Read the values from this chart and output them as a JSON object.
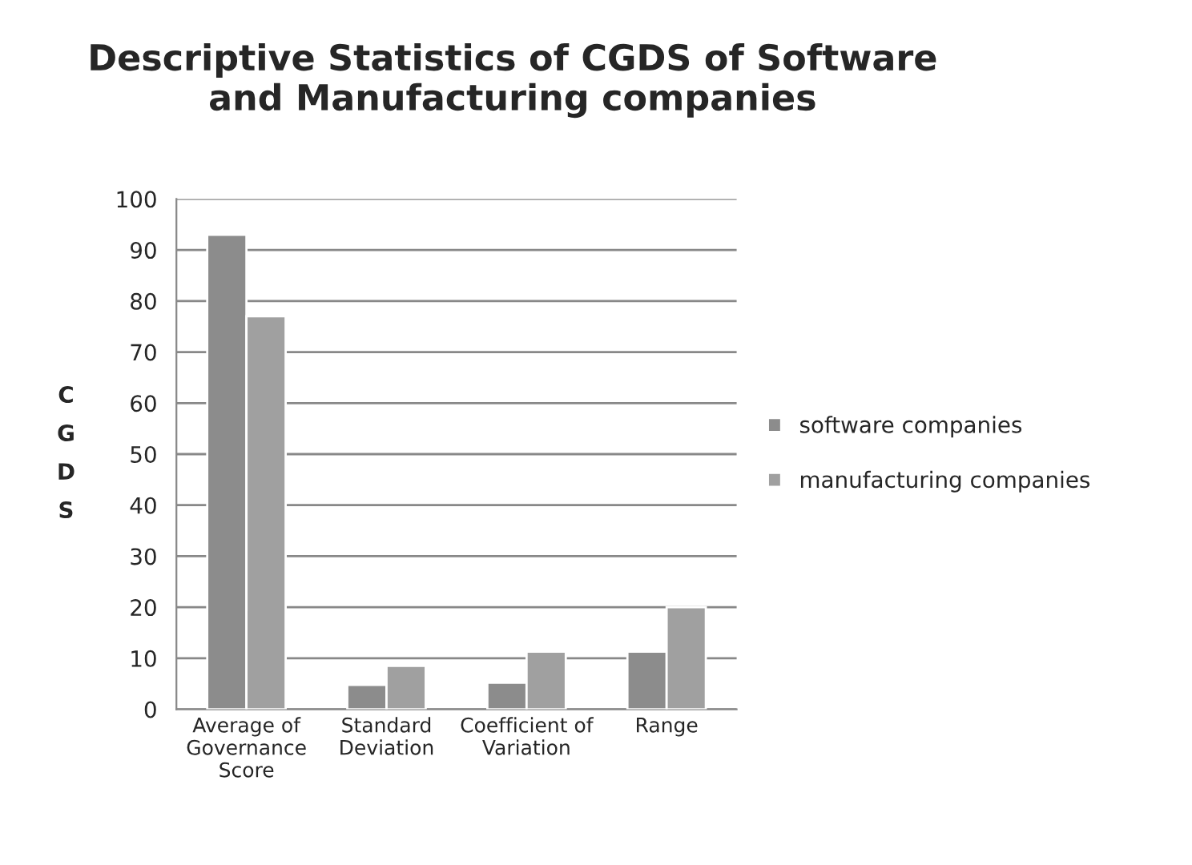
{
  "chart_data": {
    "type": "bar",
    "title": "Descriptive Statistics of CGDS of Software and Manufacturing companies",
    "ylabel": "CGDS",
    "categories": [
      "Average of Governance Score",
      "Standard Deviation",
      "Coefficient of Variation",
      "Range"
    ],
    "series": [
      {
        "name": "software companies",
        "color": "#8c8c8c",
        "values": [
          93,
          4.8,
          5.2,
          11.3
        ]
      },
      {
        "name": "manufacturing companies",
        "color": "#a0a0a0",
        "values": [
          77,
          8.5,
          11.3,
          20
        ]
      }
    ],
    "ylim": [
      0,
      100
    ],
    "yticks": [
      0,
      10,
      20,
      30,
      40,
      50,
      60,
      70,
      80,
      90,
      100
    ],
    "grid": "y",
    "legend": "right"
  }
}
